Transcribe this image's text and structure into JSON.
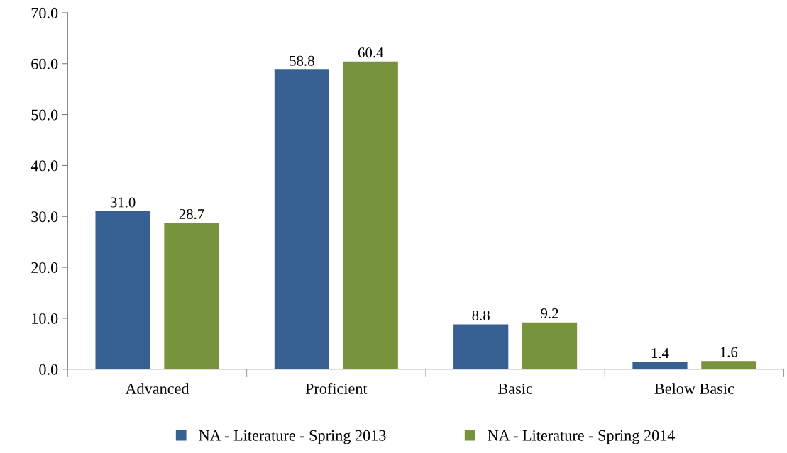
{
  "chart_data": {
    "type": "bar",
    "categories": [
      "Advanced",
      "Proficient",
      "Basic",
      "Below Basic"
    ],
    "series": [
      {
        "name": "NA - Literature - Spring 2013",
        "color": "#376092",
        "values": [
          31.0,
          58.8,
          8.8,
          1.4
        ],
        "value_labels": [
          "31.0",
          "58.8",
          "8.8",
          "1.4"
        ]
      },
      {
        "name": "NA - Literature - Spring 2014",
        "color": "#77933c",
        "values": [
          28.7,
          60.4,
          9.2,
          1.6
        ],
        "value_labels": [
          "28.7",
          "60.4",
          "9.2",
          "1.6"
        ]
      }
    ],
    "ylim": [
      0,
      70
    ],
    "yticks": [
      {
        "value": 0,
        "label": "0.0"
      },
      {
        "value": 10,
        "label": "10.0"
      },
      {
        "value": 20,
        "label": "20.0"
      },
      {
        "value": 30,
        "label": "30.0"
      },
      {
        "value": 40,
        "label": "40.0"
      },
      {
        "value": 50,
        "label": "50.0"
      },
      {
        "value": 60,
        "label": "60.0"
      },
      {
        "value": 70,
        "label": "70.0"
      }
    ],
    "grid": false,
    "legend": "bottom"
  }
}
